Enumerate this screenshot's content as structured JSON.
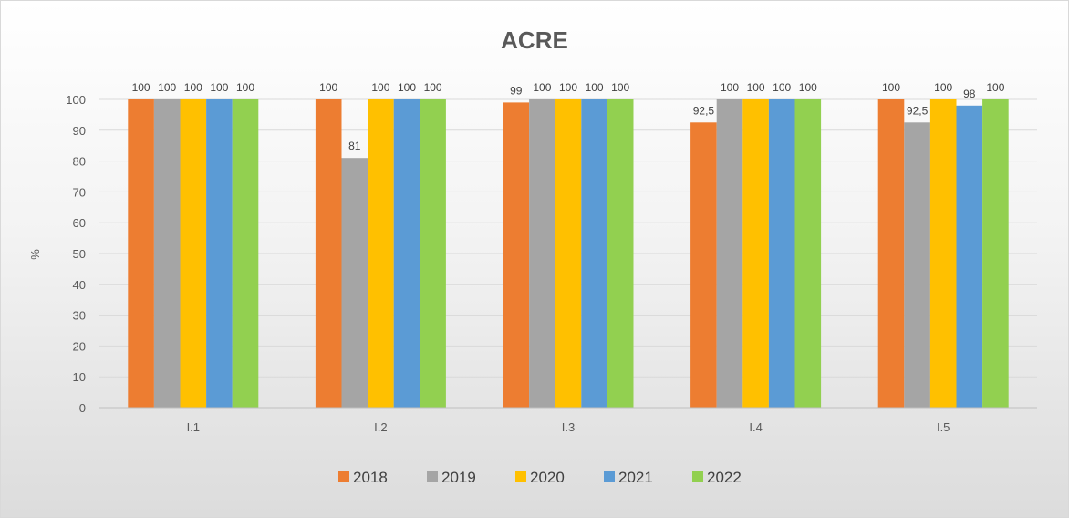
{
  "chart_data": {
    "type": "bar",
    "title": "ACRE",
    "xlabel": "",
    "ylabel": "%",
    "ylim": [
      0,
      100
    ],
    "yticks": [
      0,
      10,
      20,
      30,
      40,
      50,
      60,
      70,
      80,
      90,
      100
    ],
    "categories": [
      "I.1",
      "I.2",
      "I.3",
      "I.4",
      "I.5"
    ],
    "series": [
      {
        "name": "2018",
        "color": "#ED7D31",
        "values": [
          100,
          100,
          99,
          92.5,
          100
        ],
        "labels": [
          "100",
          "100",
          "99",
          "92,5",
          "100"
        ]
      },
      {
        "name": "2019",
        "color": "#A5A5A5",
        "values": [
          100,
          81,
          100,
          100,
          92.5
        ],
        "labels": [
          "100",
          "81",
          "100",
          "100",
          "92,5"
        ]
      },
      {
        "name": "2020",
        "color": "#FFC000",
        "values": [
          100,
          100,
          100,
          100,
          100
        ],
        "labels": [
          "100",
          "100",
          "100",
          "100",
          "100"
        ]
      },
      {
        "name": "2021",
        "color": "#5B9BD5",
        "values": [
          100,
          100,
          100,
          100,
          98
        ],
        "labels": [
          "100",
          "100",
          "100",
          "100",
          "98"
        ]
      },
      {
        "name": "2022",
        "color": "#92D050",
        "values": [
          100,
          100,
          100,
          100,
          100
        ],
        "labels": [
          "100",
          "100",
          "100",
          "100",
          "100"
        ]
      }
    ],
    "grid": true,
    "legend_position": "bottom"
  }
}
